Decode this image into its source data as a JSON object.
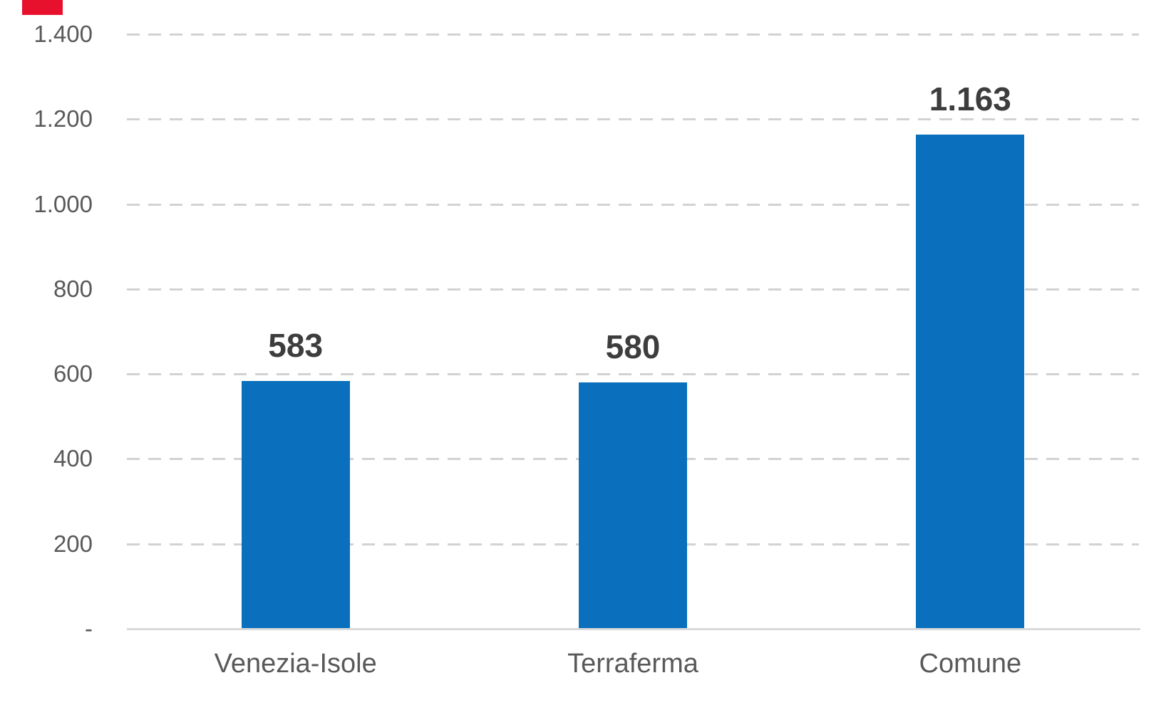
{
  "chart_data": {
    "type": "bar",
    "categories": [
      "Venezia-Isole",
      "Terraferma",
      "Comune"
    ],
    "values": [
      583,
      580,
      1163
    ],
    "value_labels": [
      "583",
      "580",
      "1.163"
    ],
    "title": "",
    "xlabel": "",
    "ylabel": "",
    "ylim": [
      0,
      1400
    ],
    "y_tick_labels": [
      "1.400",
      "1.200",
      "1.000",
      "800",
      "600",
      "400",
      "200",
      "-"
    ],
    "y_tick_values": [
      1400,
      1200,
      1000,
      800,
      600,
      400,
      200,
      0
    ],
    "grid": "horizontal dashed gridlines, solid baseline",
    "legend": "none",
    "bar_color": "#0a70bd"
  },
  "colors": {
    "background": "#ffffff",
    "bar": "#0a70bd",
    "gridline": "#d2d2d2",
    "axis_line": "#d9d9d9",
    "y_tick_text": "#595959",
    "category_text": "#595959",
    "value_label_text": "#3d3d3d",
    "red_marker": "#e8112d"
  },
  "decorations": {
    "red_marker_top_left": true
  }
}
